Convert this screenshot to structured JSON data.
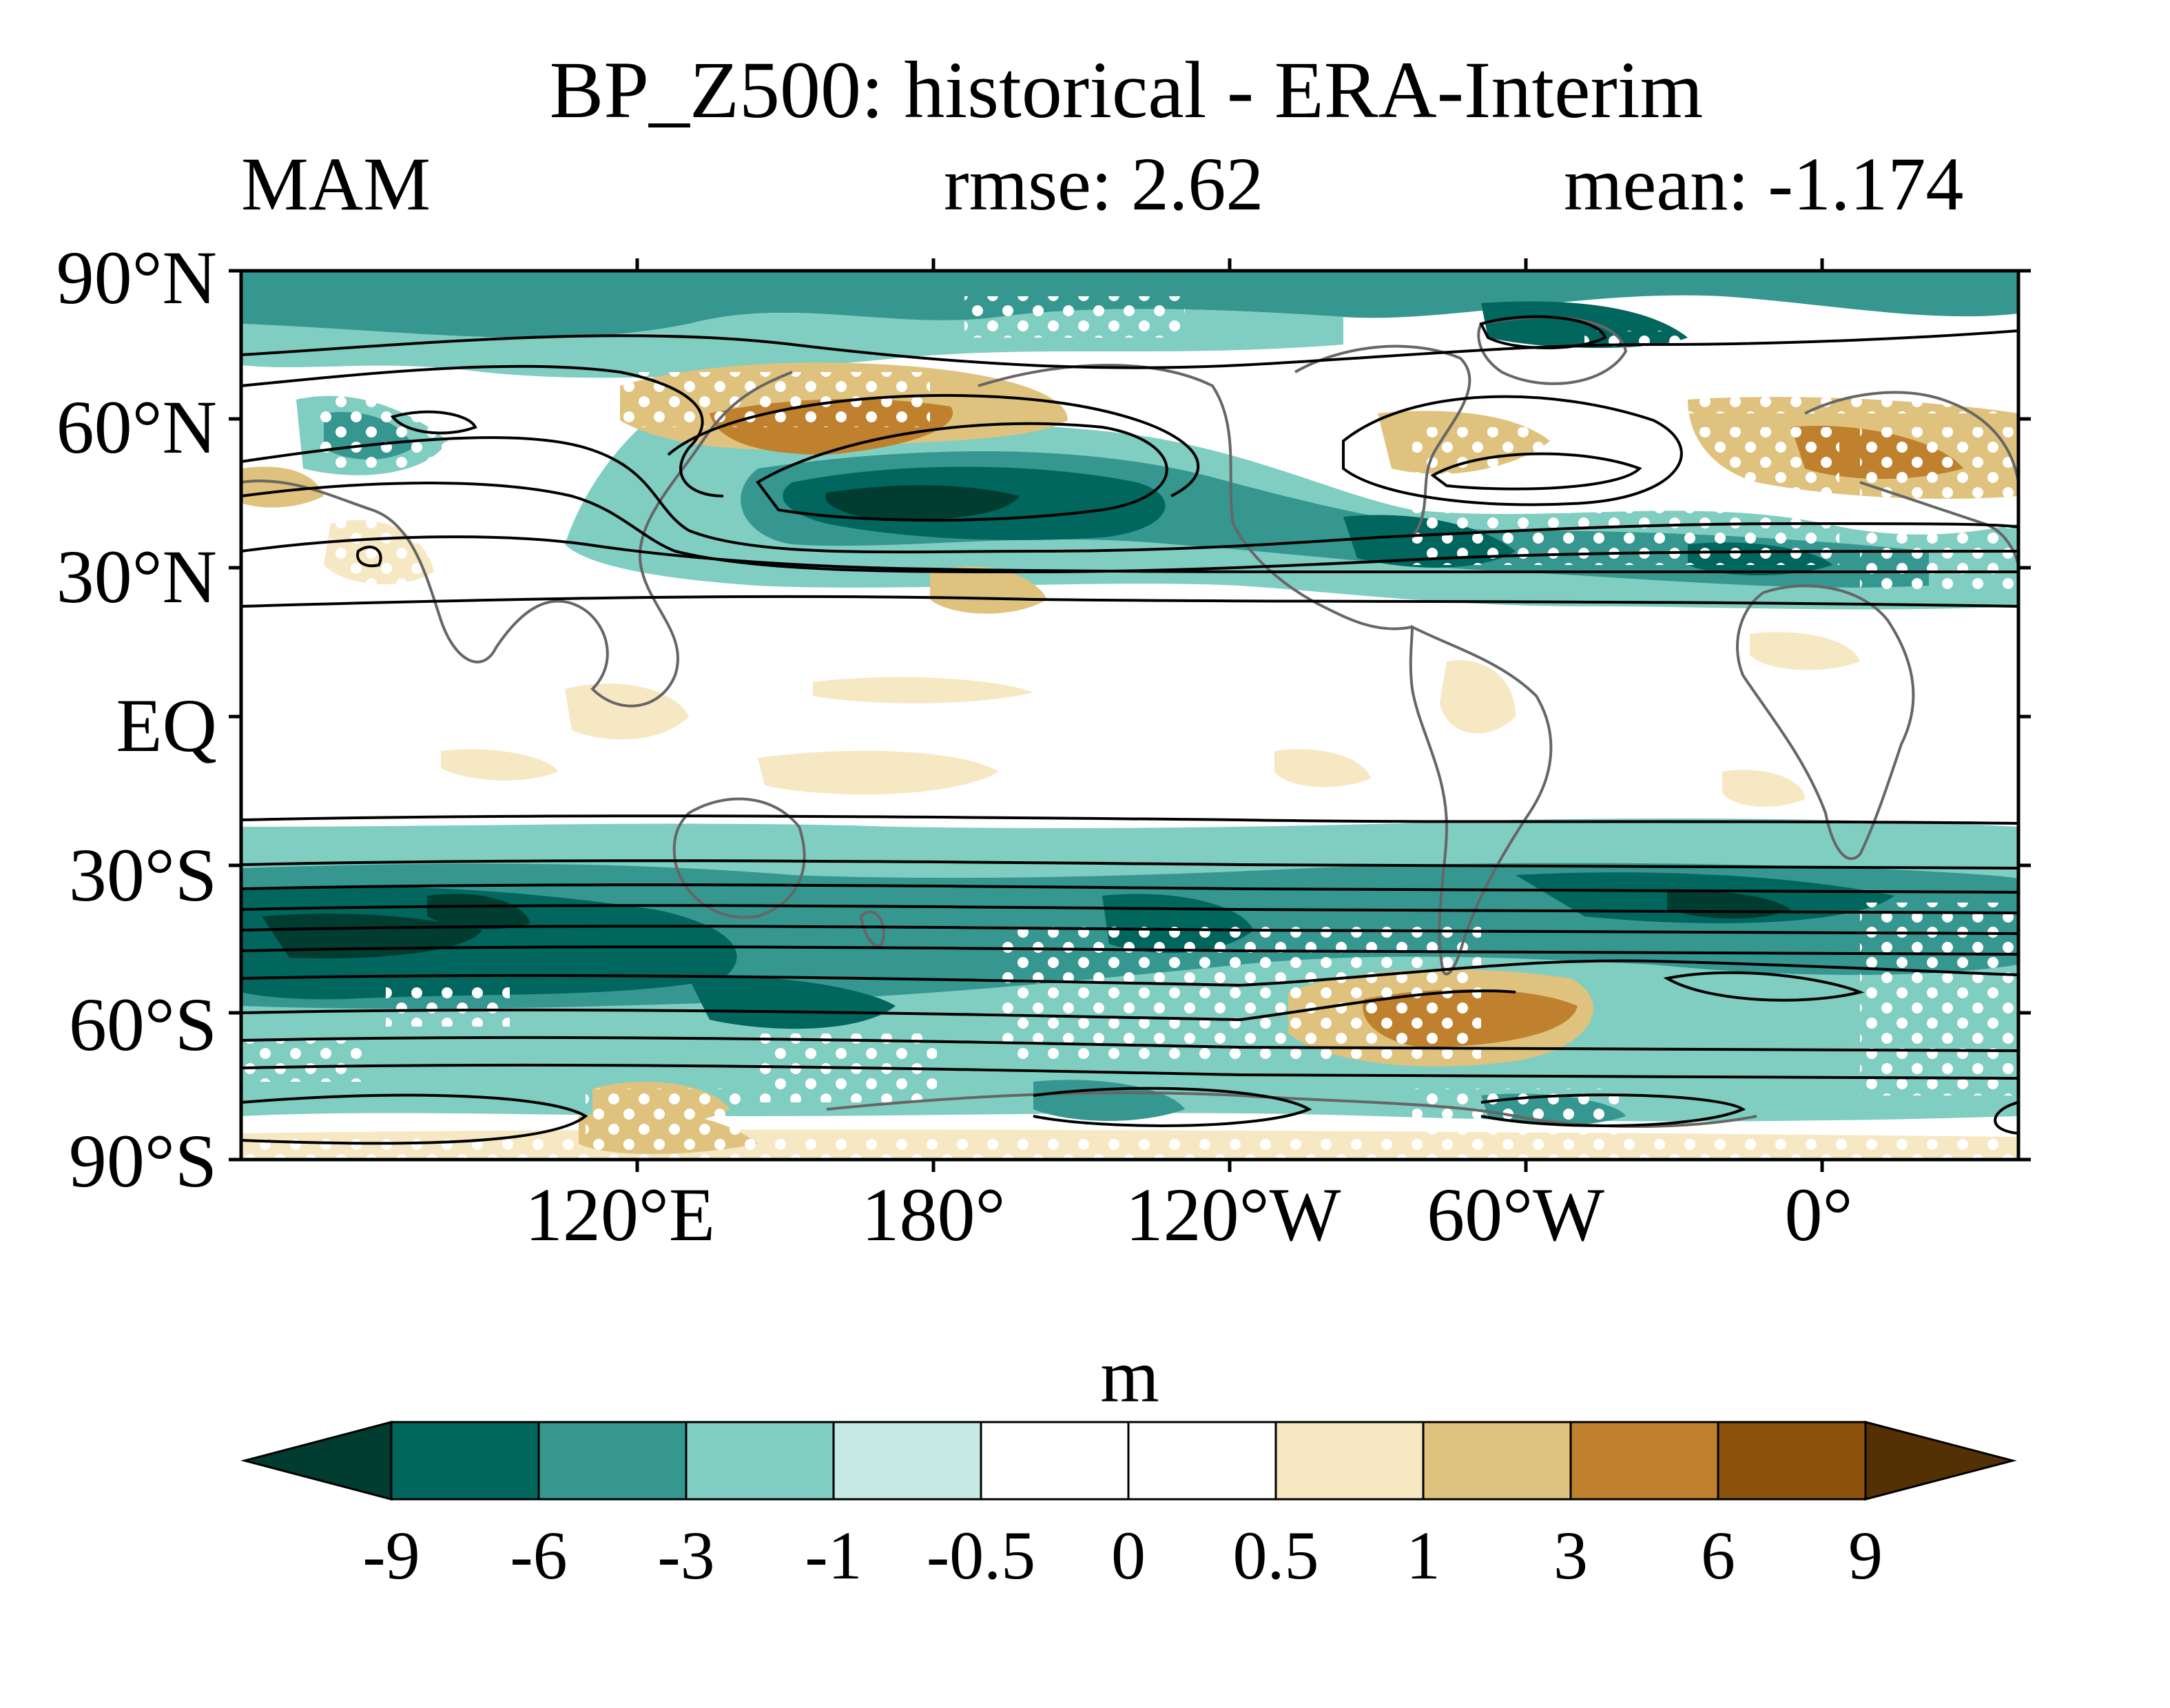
{
  "title": "BP_Z500: historical - ERA-Interim",
  "season": "MAM",
  "rmse": "rmse: 2.62",
  "mean": "mean: -1.174",
  "lat_labels": [
    "90°N",
    "60°N",
    "30°N",
    "EQ",
    "30°S",
    "60°S",
    "90°S"
  ],
  "lon_labels": [
    "120°E",
    "180°",
    "120°W",
    "60°W",
    "0°"
  ],
  "colorbar": {
    "units": "m",
    "levels": [
      "-9",
      "-6",
      "-3",
      "-1",
      "-0.5",
      "0",
      "0.5",
      "1",
      "3",
      "6",
      "9"
    ],
    "colors": [
      "#003c30",
      "#01665e",
      "#35978f",
      "#80cdc1",
      "#c7eae5",
      "#ffffff",
      "#ffffff",
      "#f6e8c3",
      "#dfc27d",
      "#bf812d",
      "#8c510a",
      "#543005"
    ]
  },
  "colors": {
    "land_outline": "#666666",
    "contour": "#000000",
    "stipple": "#ffffff"
  }
}
